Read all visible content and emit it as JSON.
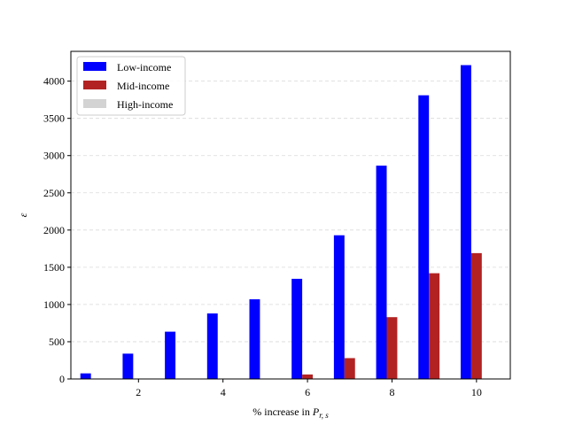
{
  "chart_data": {
    "type": "bar",
    "x": [
      1,
      2,
      3,
      4,
      5,
      6,
      7,
      8,
      9,
      10
    ],
    "series": [
      {
        "name": "Low-income",
        "color": "#0000ff",
        "values": [
          75,
          340,
          635,
          880,
          1070,
          1345,
          1930,
          2865,
          3810,
          4215
        ]
      },
      {
        "name": "Mid-income",
        "color": "#b22222",
        "values": [
          0,
          0,
          0,
          0,
          0,
          60,
          280,
          830,
          1420,
          1690
        ]
      },
      {
        "name": "High-income",
        "color": "#d3d3d3",
        "values": [
          0,
          0,
          0,
          0,
          0,
          0,
          0,
          0,
          0,
          0
        ]
      }
    ],
    "xticks": [
      "2",
      "4",
      "6",
      "8",
      "10"
    ],
    "yticks": [
      "0",
      "500",
      "1000",
      "1500",
      "2000",
      "2500",
      "3000",
      "3500",
      "4000"
    ],
    "xlabel_prefix": "% increase in ",
    "xlabel_symbol": "P",
    "xlabel_subscript": "r, s",
    "ylabel": "ε",
    "ylim": [
      0,
      4400
    ],
    "xlim": [
      0.4,
      10.8
    ],
    "grid": "y-dashed",
    "legend_position": "top-left"
  }
}
